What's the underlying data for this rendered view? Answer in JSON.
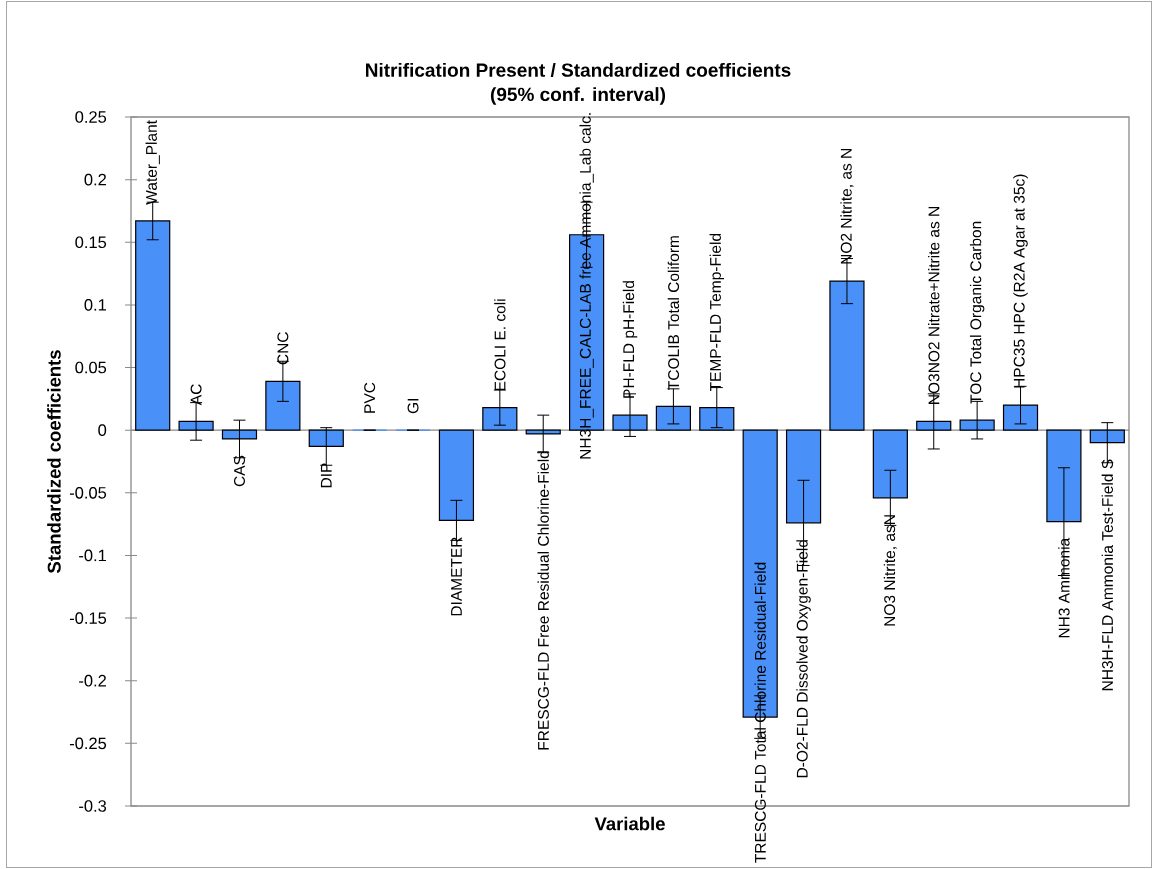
{
  "chart_data": {
    "type": "bar",
    "title": "Nitrification Present / Standardized coefficients",
    "subtitle": "(95% conf. interval)",
    "xlabel": "Variable",
    "ylabel": "Standardized coefficients",
    "categories": [
      "Water_Plant",
      "AC",
      "CAS",
      "CNC",
      "DIP",
      "PVC",
      "GI",
      "DIAMETER",
      "ECOLI E. coli",
      "FRESCG-FLD Free Residual Chlorine-Field",
      "NH3H_FREE_CALC-LAB free Ammonia_Lab calc.",
      "PH-FLD pH-Field",
      "TCOLIB Total Coliform",
      "TEMP-FLD Temp-Field",
      "TRESCG-FLD Total Chlorine Residual-Field",
      "D-O2-FLD Dissolved Oxygen-Field",
      "NO2 Nitrite, as N",
      "NO3 Nitrite, asN",
      "NO3NO2 Nitrate+Nitrite as N",
      "TOC Total Organic Carbon",
      "HPC35 HPC (R2A Agar at 35c)",
      "NH3 Ammonia",
      "NH3H-FLD Ammonia Test-Field S"
    ],
    "values": [
      0.167,
      0.007,
      -0.007,
      0.039,
      -0.013,
      0,
      0,
      -0.072,
      0.018,
      -0.003,
      0.156,
      0.012,
      0.019,
      0.018,
      -0.229,
      -0.074,
      0.119,
      -0.054,
      0.007,
      0.008,
      0.02,
      -0.073,
      -0.01
    ],
    "errors": [
      0.015,
      0.015,
      0.015,
      0.016,
      0.015,
      0,
      0,
      0.016,
      0.014,
      0.015,
      0.026,
      0.017,
      0.014,
      0.016,
      0.017,
      0.034,
      0.018,
      0.022,
      0.022,
      0.015,
      0.015,
      0.043,
      0.016
    ],
    "color": "#4a90f9",
    "ylim": [
      -0.3,
      0.25
    ],
    "yticks": [
      -0.3,
      -0.25,
      -0.2,
      -0.15,
      -0.1,
      -0.05,
      0,
      0.05,
      0.1,
      0.15,
      0.2,
      0.25
    ]
  }
}
